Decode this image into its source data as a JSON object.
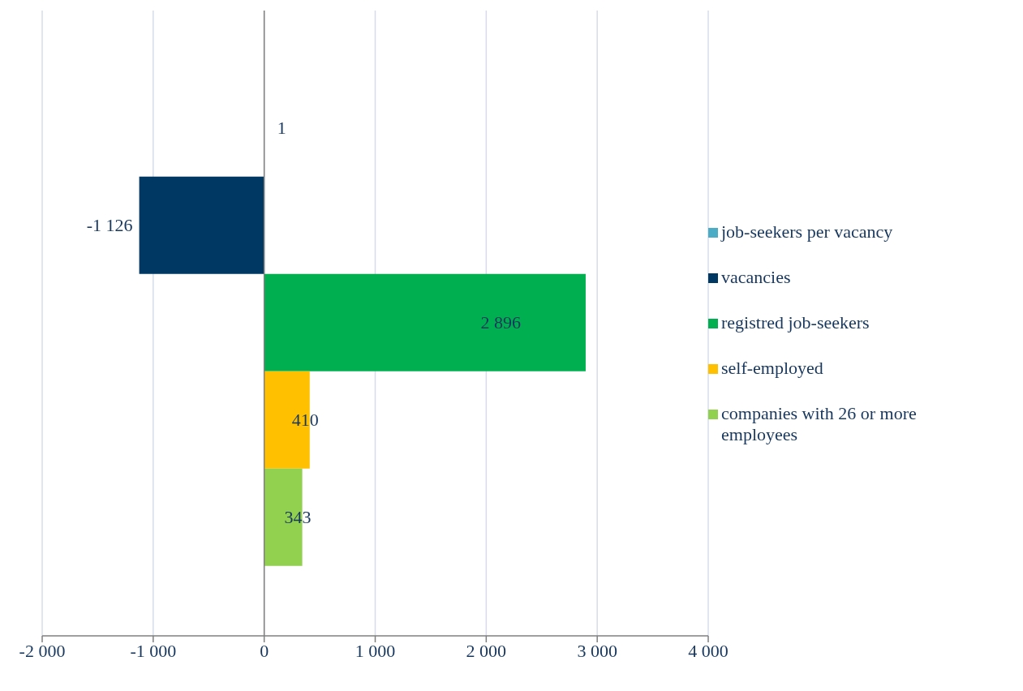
{
  "chart_data": {
    "type": "bar",
    "orientation": "horizontal",
    "categories": [
      null
    ],
    "series": [
      {
        "name": "job-seekers per vacancy",
        "color": "#4bacc6",
        "values": [
          1
        ],
        "value_labels": [
          "1"
        ]
      },
      {
        "name": "vacancies",
        "color": "#003864",
        "values": [
          -1126
        ],
        "value_labels": [
          "-1 126"
        ]
      },
      {
        "name": "registred job-seekers",
        "color": "#00b050",
        "values": [
          2896
        ],
        "value_labels": [
          "2 896"
        ]
      },
      {
        "name": "self-employed",
        "color": "#ffc000",
        "values": [
          410
        ],
        "value_labels": [
          "410"
        ]
      },
      {
        "name": "companies with 26 or more employees",
        "color": "#92d050",
        "values": [
          343
        ],
        "value_labels": [
          "343"
        ]
      }
    ],
    "xlim": [
      -2000,
      4000
    ],
    "xticks": [
      {
        "value": -2000,
        "label": "-2 000"
      },
      {
        "value": -1000,
        "label": "-1 000"
      },
      {
        "value": 0,
        "label": "0"
      },
      {
        "value": 1000,
        "label": "1 000"
      },
      {
        "value": 2000,
        "label": "2 000"
      },
      {
        "value": 3000,
        "label": "3 000"
      },
      {
        "value": 4000,
        "label": "4 000"
      }
    ],
    "grid": "x",
    "legend": "right"
  }
}
